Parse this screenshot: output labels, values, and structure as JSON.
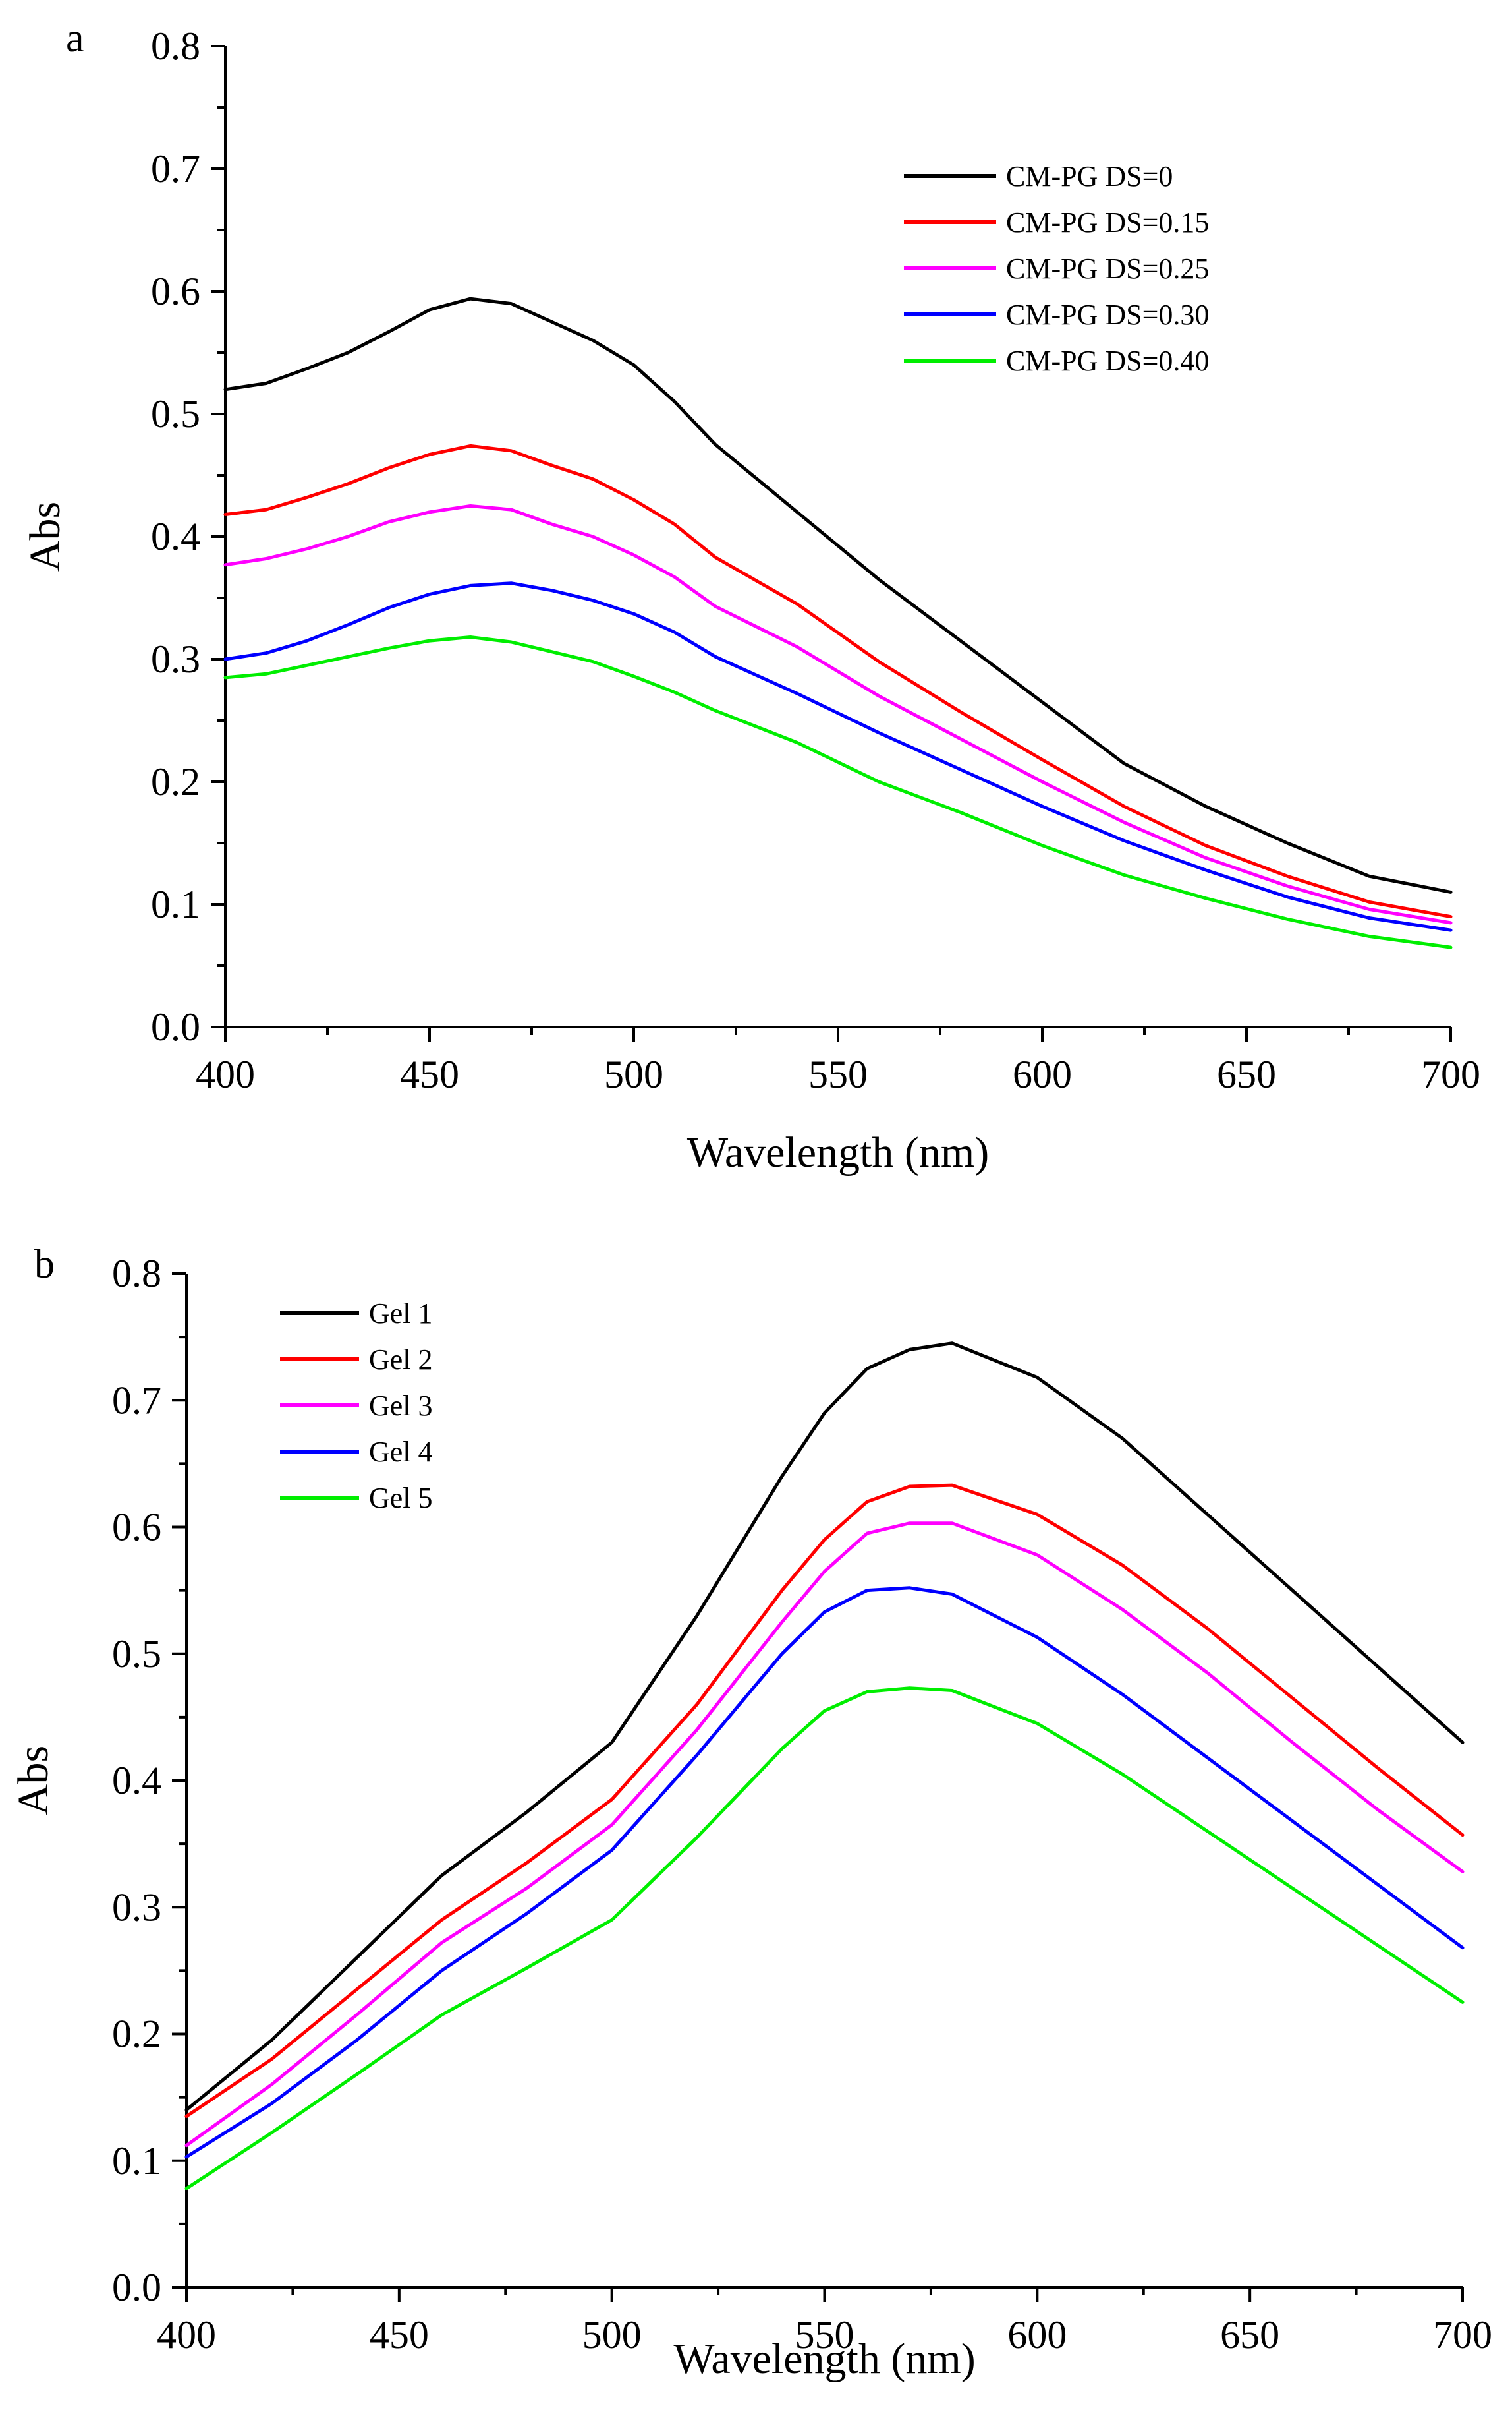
{
  "chart_data": [
    {
      "panel_label": "a",
      "type": "line",
      "xlabel": "Wavelength (nm)",
      "ylabel": "Abs",
      "xlim": [
        400,
        700
      ],
      "ylim": [
        0.0,
        0.8
      ],
      "xticks": [
        400,
        450,
        500,
        550,
        600,
        650,
        700
      ],
      "xtick_labels": [
        "400",
        "450",
        "500",
        "550",
        "600",
        "650",
        "700"
      ],
      "yticks": [
        0.0,
        0.1,
        0.2,
        0.3,
        0.4,
        0.5,
        0.6,
        0.7,
        0.8
      ],
      "ytick_labels": [
        "0.0",
        "0.1",
        "0.2",
        "0.3",
        "0.4",
        "0.5",
        "0.6",
        "0.7",
        "0.8"
      ],
      "legend_position": "top-right",
      "x": [
        400,
        410,
        420,
        430,
        440,
        450,
        460,
        470,
        480,
        490,
        500,
        510,
        520,
        540,
        560,
        580,
        600,
        620,
        640,
        660,
        680,
        700
      ],
      "series": [
        {
          "name": "CM-PG DS=0",
          "color": "#000000",
          "values": [
            0.52,
            0.525,
            0.537,
            0.55,
            0.567,
            0.585,
            0.594,
            0.59,
            0.575,
            0.56,
            0.54,
            0.51,
            0.475,
            0.42,
            0.365,
            0.315,
            0.265,
            0.215,
            0.18,
            0.15,
            0.123,
            0.11
          ]
        },
        {
          "name": "CM-PG DS=0.15",
          "color": "#ff0000",
          "values": [
            0.418,
            0.422,
            0.432,
            0.443,
            0.456,
            0.467,
            0.474,
            0.47,
            0.458,
            0.447,
            0.43,
            0.41,
            0.383,
            0.345,
            0.298,
            0.257,
            0.218,
            0.18,
            0.148,
            0.123,
            0.102,
            0.09
          ]
        },
        {
          "name": "CM-PG DS=0.25",
          "color": "#ff00ff",
          "values": [
            0.377,
            0.382,
            0.39,
            0.4,
            0.412,
            0.42,
            0.425,
            0.422,
            0.41,
            0.4,
            0.385,
            0.367,
            0.343,
            0.31,
            0.27,
            0.235,
            0.2,
            0.167,
            0.138,
            0.115,
            0.096,
            0.085
          ]
        },
        {
          "name": "CM-PG DS=0.30",
          "color": "#0000ff",
          "values": [
            0.3,
            0.305,
            0.315,
            0.328,
            0.342,
            0.353,
            0.36,
            0.362,
            0.356,
            0.348,
            0.337,
            0.322,
            0.302,
            0.272,
            0.24,
            0.21,
            0.18,
            0.152,
            0.128,
            0.106,
            0.089,
            0.079
          ]
        },
        {
          "name": "CM-PG DS=0.40",
          "color": "#00ee00",
          "values": [
            0.285,
            0.288,
            0.295,
            0.302,
            0.309,
            0.315,
            0.318,
            0.314,
            0.306,
            0.298,
            0.286,
            0.273,
            0.258,
            0.232,
            0.2,
            0.175,
            0.148,
            0.124,
            0.105,
            0.088,
            0.074,
            0.065
          ]
        }
      ]
    },
    {
      "panel_label": "b",
      "type": "line",
      "xlabel": "Wavelength (nm)",
      "ylabel": "Abs",
      "xlim": [
        400,
        700
      ],
      "ylim": [
        0.0,
        0.8
      ],
      "xticks": [
        400,
        450,
        500,
        550,
        600,
        650,
        700
      ],
      "xtick_labels": [
        "400",
        "450",
        "500",
        "550",
        "600",
        "650",
        "700"
      ],
      "yticks": [
        0.0,
        0.1,
        0.2,
        0.3,
        0.4,
        0.5,
        0.6,
        0.7,
        0.8
      ],
      "ytick_labels": [
        "0.0",
        "0.1",
        "0.2",
        "0.3",
        "0.4",
        "0.5",
        "0.6",
        "0.7",
        "0.8"
      ],
      "legend_position": "top-left",
      "x": [
        400,
        420,
        440,
        460,
        480,
        500,
        520,
        540,
        550,
        560,
        570,
        580,
        600,
        620,
        640,
        660,
        680,
        700
      ],
      "series": [
        {
          "name": "Gel 1",
          "color": "#000000",
          "values": [
            0.14,
            0.195,
            0.26,
            0.325,
            0.375,
            0.43,
            0.53,
            0.64,
            0.69,
            0.725,
            0.74,
            0.745,
            0.718,
            0.67,
            0.61,
            0.55,
            0.49,
            0.43
          ]
        },
        {
          "name": "Gel 2",
          "color": "#ff0000",
          "values": [
            0.135,
            0.18,
            0.235,
            0.29,
            0.335,
            0.385,
            0.46,
            0.55,
            0.59,
            0.62,
            0.632,
            0.633,
            0.61,
            0.57,
            0.52,
            0.465,
            0.41,
            0.357
          ]
        },
        {
          "name": "Gel 3",
          "color": "#ff00ff",
          "values": [
            0.112,
            0.16,
            0.215,
            0.272,
            0.315,
            0.365,
            0.44,
            0.525,
            0.565,
            0.595,
            0.603,
            0.603,
            0.578,
            0.535,
            0.485,
            0.43,
            0.377,
            0.328
          ]
        },
        {
          "name": "Gel 4",
          "color": "#0000ff",
          "values": [
            0.103,
            0.145,
            0.195,
            0.25,
            0.295,
            0.345,
            0.42,
            0.5,
            0.533,
            0.55,
            0.552,
            0.547,
            0.513,
            0.468,
            0.418,
            0.368,
            0.318,
            0.268
          ]
        },
        {
          "name": "Gel 5",
          "color": "#00ee00",
          "values": [
            0.078,
            0.122,
            0.168,
            0.215,
            0.252,
            0.29,
            0.355,
            0.425,
            0.455,
            0.47,
            0.473,
            0.471,
            0.445,
            0.405,
            0.36,
            0.315,
            0.27,
            0.225
          ]
        }
      ]
    }
  ]
}
